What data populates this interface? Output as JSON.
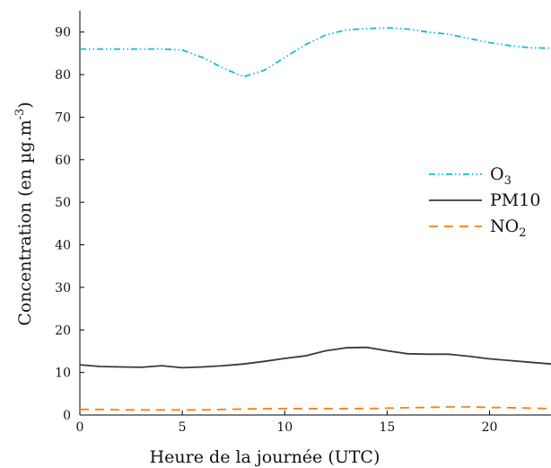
{
  "chart_data": {
    "type": "line",
    "title": "",
    "xlabel": "Heure de la journée (UTC)",
    "ylabel": {
      "main": "Concentration (en µg.m",
      "sup": "-3",
      "end": ")"
    },
    "xlim": [
      0,
      23
    ],
    "ylim": [
      0,
      95
    ],
    "xticks": [
      0,
      5,
      10,
      15,
      20
    ],
    "yticks": [
      0,
      10,
      20,
      30,
      40,
      50,
      60,
      70,
      80,
      90
    ],
    "grid": false,
    "legend_position": "right",
    "x": [
      0,
      1,
      2,
      3,
      4,
      5,
      6,
      7,
      8,
      9,
      10,
      11,
      12,
      13,
      14,
      15,
      16,
      17,
      18,
      19,
      20,
      21,
      22,
      23
    ],
    "series": [
      {
        "name": "O3",
        "label_main": "O",
        "label_sub": "3",
        "color": "#17becf",
        "style": "dashdotdot",
        "values": [
          86,
          86,
          86,
          86,
          86,
          85.8,
          84,
          81.5,
          79.5,
          81,
          84,
          87,
          89.3,
          90.5,
          90.8,
          91,
          90.7,
          90,
          89.5,
          88.5,
          87.5,
          86.8,
          86.3,
          86.2
        ]
      },
      {
        "name": "PM10",
        "label_main": "PM10",
        "label_sub": "",
        "color": "#3a3a3a",
        "style": "solid",
        "values": [
          11.8,
          11.4,
          11.3,
          11.2,
          11.6,
          11.1,
          11.3,
          11.6,
          12,
          12.6,
          13.3,
          13.9,
          15.1,
          15.8,
          15.9,
          15.1,
          14.4,
          14.3,
          14.3,
          13.8,
          13.2,
          12.8,
          12.4,
          12
        ]
      },
      {
        "name": "NO2",
        "label_main": "NO",
        "label_sub": "2",
        "color": "#ff7f0e",
        "style": "dashed",
        "values": [
          1.3,
          1.3,
          1.2,
          1.2,
          1.2,
          1.2,
          1.2,
          1.3,
          1.4,
          1.5,
          1.5,
          1.5,
          1.5,
          1.5,
          1.5,
          1.6,
          1.7,
          1.8,
          1.9,
          1.9,
          1.8,
          1.7,
          1.6,
          1.5
        ]
      }
    ]
  }
}
